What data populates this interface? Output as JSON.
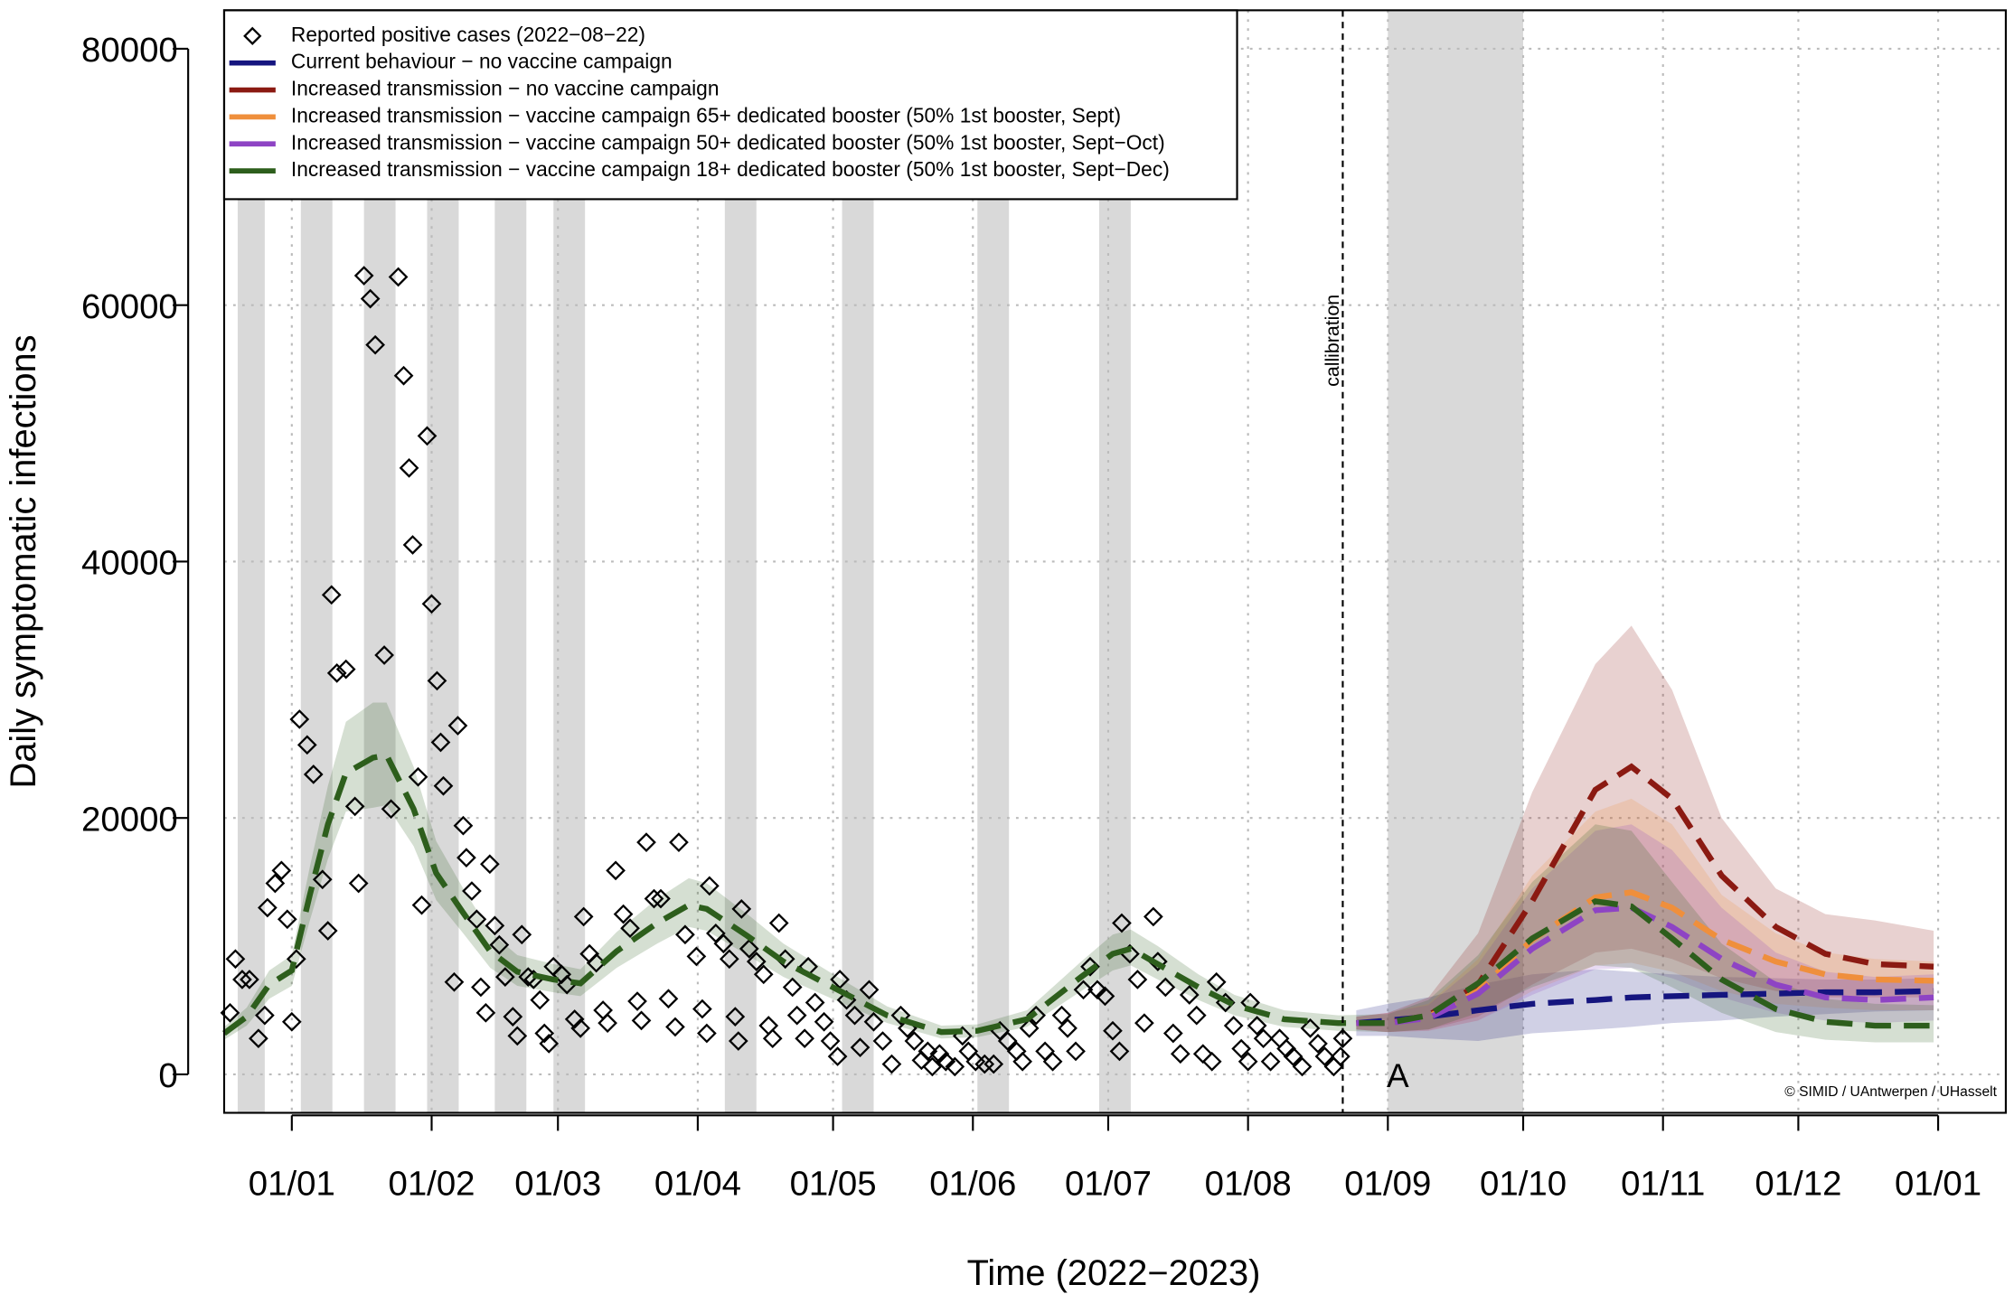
{
  "chart_data": {
    "type": "line",
    "x_label": "Time (2022−2023)",
    "y_label": "Daily symptomatic infections",
    "xlim": [
      -15,
      380
    ],
    "ylim": [
      -3000,
      83000
    ],
    "xticks": [
      {
        "value": 0,
        "label": "01/01"
      },
      {
        "value": 31,
        "label": "01/02"
      },
      {
        "value": 59,
        "label": "01/03"
      },
      {
        "value": 90,
        "label": "01/04"
      },
      {
        "value": 120,
        "label": "01/05"
      },
      {
        "value": 151,
        "label": "01/06"
      },
      {
        "value": 181,
        "label": "01/07"
      },
      {
        "value": 212,
        "label": "01/08"
      },
      {
        "value": 243,
        "label": "01/09"
      },
      {
        "value": 273,
        "label": "01/10"
      },
      {
        "value": 304,
        "label": "01/11"
      },
      {
        "value": 334,
        "label": "01/12"
      },
      {
        "value": 365,
        "label": "01/01"
      }
    ],
    "yticks": [
      0,
      20000,
      40000,
      60000,
      80000
    ],
    "grid": true,
    "legend": "top-left",
    "shaded_periods": [
      [
        -12,
        -6
      ],
      [
        2,
        9
      ],
      [
        16,
        23
      ],
      [
        30,
        37
      ],
      [
        45,
        52
      ],
      [
        58,
        65
      ],
      [
        96,
        103
      ],
      [
        122,
        129
      ],
      [
        152,
        159
      ],
      [
        179,
        186
      ],
      [
        243,
        273
      ]
    ],
    "shade_color": "#d9d9d9",
    "vline": {
      "x": 233,
      "label": "callibration"
    },
    "annotation": "A",
    "credit": "© SIMID / UAntwerpen / UHasselt",
    "series": [
      {
        "name": "Reported positive cases (2022−08−22)",
        "type": "scatter",
        "color": "#000000",
        "x": [
          -13.7,
          -12.5,
          -11,
          -9.4,
          -7.4,
          -6,
          -5.4,
          -3.7,
          -2.3,
          -1,
          0,
          1,
          1.7,
          3.4,
          4.8,
          6.8,
          8,
          8.8,
          10,
          12,
          14,
          14.8,
          16,
          17.4,
          18.5,
          20.5,
          22,
          23.6,
          24.8,
          26,
          26.8,
          28,
          28.8,
          30,
          31,
          32.2,
          33,
          33.6,
          36,
          36.8,
          38,
          38.7,
          39.9,
          41,
          41.9,
          43,
          43.9,
          45,
          46,
          47.3,
          49,
          50,
          51,
          52.4,
          53.6,
          55,
          56,
          57,
          58,
          59.8,
          61,
          62.7,
          64,
          64.7,
          66,
          67.5,
          69,
          70,
          71.8,
          73.5,
          75,
          76.6,
          77.5,
          78.6,
          80.3,
          81.8,
          83.5,
          85,
          85.8,
          87.2,
          89.7,
          91,
          92,
          92.6,
          94,
          95.7,
          97,
          98.3,
          99,
          99.7,
          101.4,
          103,
          104.6,
          105.7,
          106.6,
          108,
          109.4,
          111,
          112,
          113.7,
          114.5,
          116,
          118,
          119.4,
          121,
          121.5,
          123,
          124.8,
          126,
          128,
          129,
          131,
          133,
          135,
          136.5,
          138,
          139.6,
          141,
          142,
          143.6,
          145,
          147,
          148.7,
          150,
          151.6,
          153.6,
          155.6,
          157,
          158.7,
          160.7,
          162,
          163.5,
          165,
          167,
          168.7,
          170.7,
          172,
          173.8,
          175.5,
          177,
          178.6,
          180.3,
          182,
          183.5,
          184,
          185.8,
          187.5,
          189,
          191,
          192,
          193.7,
          195.4,
          197,
          199,
          200.6,
          202,
          204,
          205,
          207,
          208.8,
          210.5,
          212,
          212.5,
          214,
          215.4,
          217,
          219,
          220.5,
          222,
          224,
          225.8,
          227.5,
          229,
          231,
          232.5,
          233
        ],
        "values": [
          4800,
          9000,
          7400,
          7400,
          2800,
          4600,
          13000,
          14900,
          15900,
          12100,
          4100,
          9000,
          27700,
          25700,
          23400,
          15200,
          11200,
          37400,
          31300,
          31600,
          20900,
          14900,
          62300,
          60500,
          56900,
          32700,
          20700,
          62200,
          54500,
          47300,
          41300,
          23200,
          13200,
          49800,
          36700,
          30700,
          25900,
          22500,
          7200,
          27200,
          19400,
          16900,
          14300,
          12100,
          6800,
          4800,
          16400,
          11600,
          10100,
          7600,
          4500,
          3000,
          10900,
          7600,
          7400,
          5800,
          3200,
          2400,
          8400,
          7800,
          7000,
          4300,
          3600,
          12300,
          9400,
          8700,
          5000,
          4000,
          15900,
          12500,
          11400,
          5700,
          4200,
          18100,
          13700,
          13700,
          5900,
          3700,
          18100,
          10900,
          9200,
          5100,
          3200,
          14700,
          11000,
          10200,
          9000,
          4500,
          2600,
          12900,
          9800,
          8800,
          7800,
          3800,
          2800,
          11800,
          9000,
          6800,
          4600,
          2800,
          8400,
          5600,
          4100,
          2600,
          1400,
          7400,
          5800,
          4600,
          2100,
          6600,
          4100,
          2600,
          800,
          4600,
          3600,
          2600,
          1100,
          1800,
          600,
          1600,
          1000,
          600,
          3000,
          1800,
          1000,
          800,
          800,
          3400,
          2600,
          1800,
          1000,
          3600,
          4600,
          1800,
          1000,
          4600,
          3600,
          1800,
          6600,
          8400,
          6600,
          6100,
          3400,
          1800,
          11800,
          9400,
          7400,
          4000,
          12300,
          8800,
          6800,
          3200,
          1600,
          6200,
          4600,
          1600,
          1000,
          7200,
          5600,
          3800,
          2000,
          1000,
          5600,
          3800,
          2800,
          1000,
          2800,
          2000,
          1400,
          600,
          3600,
          2400,
          1400,
          600,
          1400,
          2800
        ]
      },
      {
        "name": "Current behaviour − no vaccine campaign",
        "color": "#15157f",
        "x": [
          236,
          243,
          252,
          263,
          275,
          289,
          297,
          306,
          317,
          329,
          340,
          351,
          364
        ],
        "values": [
          4000,
          4200,
          4500,
          5000,
          5500,
          5800,
          6000,
          6100,
          6200,
          6300,
          6400,
          6400,
          6500
        ],
        "lower": [
          3000,
          3000,
          2800,
          2600,
          3200,
          3500,
          3700,
          4000,
          4200,
          4500,
          4700,
          4900,
          5000
        ],
        "upper": [
          5000,
          5500,
          6000,
          7000,
          7800,
          8200,
          8000,
          7800,
          7600,
          7500,
          7400,
          7400,
          7500
        ]
      },
      {
        "name": "Increased transmission − no vaccine campaign",
        "color": "#8b1a12",
        "x": [
          236,
          243,
          252,
          263,
          275,
          289,
          297,
          306,
          317,
          329,
          340,
          351,
          364
        ],
        "values": [
          4000,
          4000,
          4600,
          7000,
          13500,
          22200,
          24000,
          21500,
          15500,
          11500,
          9400,
          8600,
          8400
        ],
        "lower": [
          3500,
          3300,
          3500,
          4500,
          7000,
          9500,
          9800,
          9000,
          7500,
          6500,
          6000,
          6000,
          6000
        ],
        "upper": [
          4500,
          4800,
          6000,
          11000,
          22000,
          32000,
          35000,
          30000,
          20000,
          14500,
          12500,
          12000,
          11200
        ]
      },
      {
        "name": "Increased transmission − vaccine campaign 65+ dedicated booster (50% 1st booster, Sept)",
        "color": "#ef8f3c",
        "x": [
          236,
          243,
          252,
          263,
          275,
          289,
          297,
          306,
          317,
          329,
          340,
          351,
          364
        ],
        "values": [
          4000,
          4000,
          4500,
          6500,
          10500,
          13800,
          14200,
          13000,
          10500,
          8800,
          7800,
          7400,
          7300
        ],
        "lower": [
          3500,
          3300,
          3400,
          4200,
          6500,
          8500,
          8700,
          8000,
          6500,
          5500,
          5200,
          5000,
          5000
        ],
        "upper": [
          4500,
          4800,
          5500,
          9000,
          15500,
          20500,
          21500,
          19500,
          14000,
          11000,
          9500,
          9000,
          8800
        ]
      },
      {
        "name": "Increased transmission − vaccine campaign 50+ dedicated booster (50% 1st booster, Sept−Oct)",
        "color": "#8e44c4",
        "x": [
          236,
          243,
          252,
          263,
          275,
          289,
          297,
          306,
          317,
          329,
          340,
          351,
          364
        ],
        "values": [
          4000,
          4000,
          4400,
          6300,
          9800,
          12800,
          13000,
          11500,
          9000,
          7000,
          6000,
          5800,
          6000
        ],
        "lower": [
          3500,
          3300,
          3400,
          4200,
          6200,
          8200,
          8300,
          7500,
          6000,
          4800,
          4200,
          4000,
          4200
        ],
        "upper": [
          4500,
          4800,
          5400,
          8600,
          14500,
          19000,
          19500,
          17500,
          13000,
          9500,
          8000,
          7600,
          7800
        ]
      },
      {
        "name": "Increased transmission − vaccine campaign 18+ dedicated booster (50% 1st booster, Sept−Dec)",
        "color": "#2d5e1c",
        "x": [
          -15,
          -10,
          -5,
          0,
          4,
          8,
          12,
          18,
          21,
          27,
          32,
          38,
          44,
          50,
          58,
          64,
          72,
          81,
          88,
          92,
          101,
          109,
          121,
          132,
          144,
          152,
          163,
          175,
          182,
          186,
          192,
          201,
          209,
          220,
          232,
          243,
          252,
          263,
          275,
          289,
          297,
          306,
          317,
          329,
          340,
          351,
          364
        ],
        "values": [
          3200,
          4500,
          7000,
          8100,
          14000,
          19500,
          23500,
          24700,
          24900,
          20700,
          15700,
          12600,
          9600,
          8000,
          7400,
          7100,
          9600,
          11800,
          13200,
          12900,
          10800,
          8800,
          6600,
          4600,
          3300,
          3400,
          4300,
          7600,
          9400,
          9800,
          8600,
          6800,
          5400,
          4300,
          4000,
          4000,
          4600,
          7100,
          10600,
          13500,
          13100,
          10600,
          7400,
          5100,
          4100,
          3800,
          3800
        ],
        "lower": [
          2700,
          3800,
          5900,
          6900,
          12000,
          16800,
          20500,
          20800,
          21000,
          17800,
          13600,
          11000,
          8300,
          6900,
          6400,
          6100,
          8300,
          10200,
          11500,
          11200,
          9300,
          7600,
          5700,
          4000,
          2800,
          2900,
          3700,
          6500,
          8100,
          8500,
          7400,
          5800,
          4600,
          3700,
          3400,
          3300,
          3500,
          4800,
          6800,
          8500,
          8300,
          6800,
          4800,
          3300,
          2700,
          2500,
          2500
        ],
        "upper": [
          3700,
          5200,
          8100,
          9300,
          16200,
          22500,
          27500,
          29000,
          29000,
          24000,
          18200,
          14500,
          11100,
          9300,
          8600,
          8200,
          11100,
          13700,
          15300,
          14900,
          12500,
          10200,
          7600,
          5300,
          3800,
          3900,
          5000,
          8800,
          10900,
          11300,
          10000,
          7800,
          6200,
          5000,
          4600,
          4700,
          5800,
          9300,
          15000,
          19500,
          19000,
          15000,
          10200,
          7200,
          5900,
          5500,
          5400
        ]
      }
    ]
  }
}
